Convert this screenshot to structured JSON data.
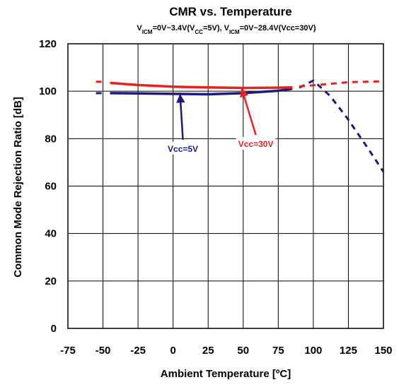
{
  "chart_data": {
    "type": "line",
    "title": "CMR vs. Temperature",
    "subtitle": {
      "parts": [
        {
          "text": "V",
          "sub": false
        },
        {
          "text": "ICM",
          "sub": true
        },
        {
          "text": "=0V~3.4V(V",
          "sub": false
        },
        {
          "text": "CC",
          "sub": true
        },
        {
          "text": "=5V), V",
          "sub": false
        },
        {
          "text": "ICM",
          "sub": true
        },
        {
          "text": "=0V~28.4V(Vcc=30V)",
          "sub": false
        }
      ]
    },
    "xlabel": "Ambient Temperature [ºC]",
    "ylabel": "Common Mode Rejection Ratio [dB]",
    "xlim": [
      -75,
      150
    ],
    "ylim": [
      0,
      120
    ],
    "xticks": [
      -75,
      -50,
      -25,
      0,
      25,
      50,
      75,
      100,
      125,
      150
    ],
    "yticks": [
      0,
      20,
      40,
      60,
      80,
      100,
      120
    ],
    "grid": true,
    "colors": {
      "vcc5": "#1a1a80",
      "vcc30": "#e8231f"
    },
    "series": [
      {
        "name": "Vcc=5V",
        "color": "#1a1a80",
        "solid": [
          [
            -45,
            99.2
          ],
          [
            -25,
            99.1
          ],
          [
            0,
            98.9
          ],
          [
            25,
            98.7
          ],
          [
            50,
            99.2
          ],
          [
            75,
            100.2
          ],
          [
            85,
            101
          ]
        ],
        "dashed": [
          [
            -55,
            99.2
          ],
          [
            -50,
            99.2
          ]
        ],
        "dashed_high": [
          [
            90,
            101.5
          ],
          [
            100,
            104.5
          ],
          [
            112,
            98
          ],
          [
            125,
            88
          ],
          [
            140,
            75
          ],
          [
            150,
            66
          ]
        ]
      },
      {
        "name": "Vcc=30V",
        "color": "#e8231f",
        "solid": [
          [
            -45,
            103.5
          ],
          [
            -25,
            102.6
          ],
          [
            0,
            101.9
          ],
          [
            25,
            101.6
          ],
          [
            50,
            101.4
          ],
          [
            75,
            101.5
          ],
          [
            85,
            101.6
          ]
        ],
        "dashed": [
          [
            -55,
            104
          ],
          [
            -50,
            104
          ]
        ],
        "dashed_high": [
          [
            90,
            102
          ],
          [
            100,
            102.5
          ],
          [
            125,
            103.8
          ],
          [
            150,
            104.2
          ]
        ]
      }
    ],
    "annotations": [
      {
        "text": "Vcc=5V",
        "series": "Vcc=5V",
        "target": [
          5,
          98.8
        ],
        "label_at": [
          7,
          76
        ]
      },
      {
        "text": "Vcc=30V",
        "series": "Vcc=30V",
        "target": [
          49,
          101.3
        ],
        "label_at": [
          59,
          78
        ]
      }
    ]
  }
}
